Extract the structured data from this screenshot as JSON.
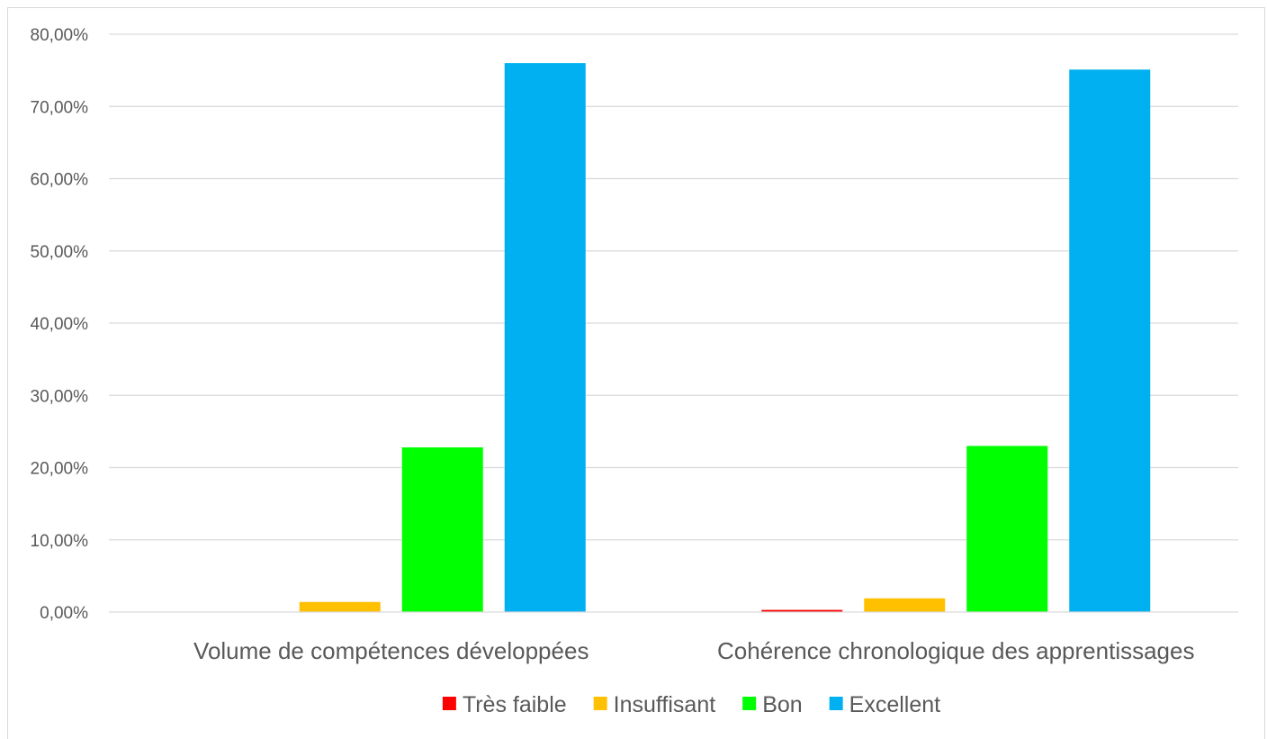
{
  "chart_data": {
    "type": "bar",
    "categories": [
      "Volume de compétences développées",
      "Cohérence chronologique des apprentissages"
    ],
    "series": [
      {
        "name": "Très faible",
        "color": "#ff0000",
        "values": [
          0.0,
          0.3
        ]
      },
      {
        "name": "Insuffisant",
        "color": "#ffc000",
        "values": [
          1.4,
          1.9
        ]
      },
      {
        "name": "Bon",
        "color": "#00ff00",
        "values": [
          22.8,
          23.0
        ]
      },
      {
        "name": "Excellent",
        "color": "#00b0f0",
        "values": [
          76.0,
          75.1
        ]
      }
    ],
    "ylim": [
      0,
      80
    ],
    "yticks": [
      "0,00%",
      "10,00%",
      "20,00%",
      "30,00%",
      "40,00%",
      "50,00%",
      "60,00%",
      "70,00%",
      "80,00%"
    ],
    "grid": true,
    "legend_position": "bottom",
    "title": "",
    "xlabel": "",
    "ylabel": ""
  }
}
